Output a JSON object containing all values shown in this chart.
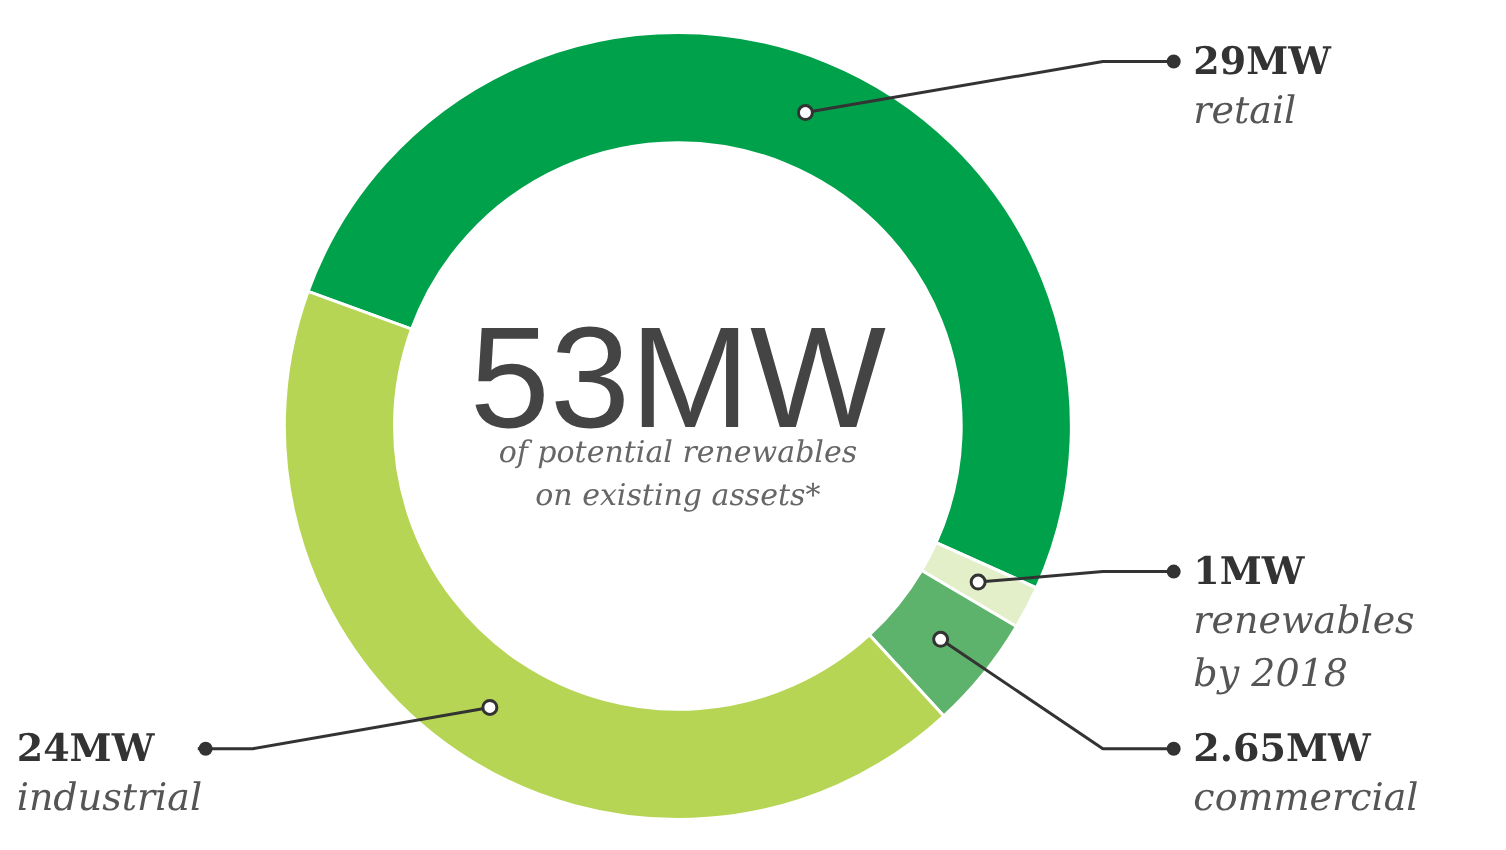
{
  "chart_data": {
    "type": "donut",
    "categories": [
      "retail",
      "renewables by 2018",
      "commercial",
      "industrial"
    ],
    "values": [
      29,
      1,
      2.65,
      24
    ],
    "colors": [
      "#00a14b",
      "#e3efc8",
      "#5db36b",
      "#b6d554"
    ],
    "value_labels": [
      "29MW",
      "1MW",
      "2.65MW",
      "24MW"
    ],
    "annotations": [
      "53MW",
      "of potential renewables on existing assets*"
    ]
  }
}
